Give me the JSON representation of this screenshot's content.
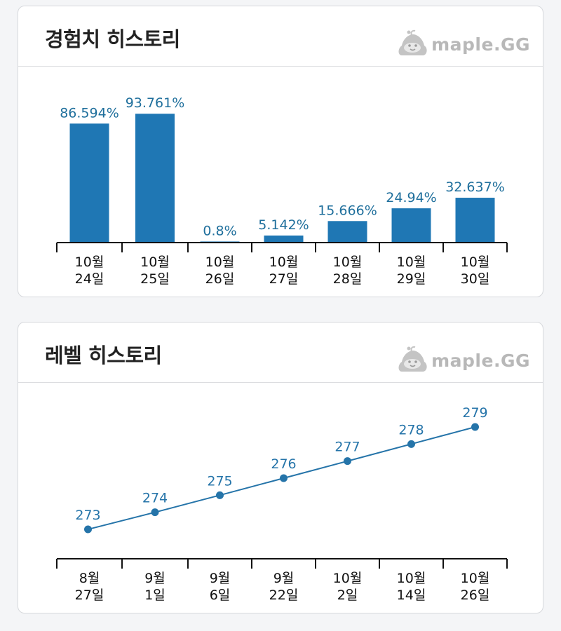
{
  "exp_card": {
    "title": "경험치 히스토리",
    "logo_text": "maple.GG"
  },
  "level_card": {
    "title": "레벨 히스토리",
    "logo_text": "maple.GG"
  },
  "chart_data": [
    {
      "type": "bar",
      "title": "경험치 히스토리",
      "categories": [
        [
          "10월",
          "24일"
        ],
        [
          "10월",
          "25일"
        ],
        [
          "10월",
          "26일"
        ],
        [
          "10월",
          "27일"
        ],
        [
          "10월",
          "28일"
        ],
        [
          "10월",
          "29일"
        ],
        [
          "10월",
          "30일"
        ]
      ],
      "values": [
        86.594,
        93.761,
        0.8,
        5.142,
        15.666,
        24.94,
        32.637
      ],
      "labels": [
        "86.594%",
        "93.761%",
        "0.8%",
        "5.142%",
        "15.666%",
        "24.94%",
        "32.637%"
      ],
      "ylim": [
        0,
        100
      ],
      "color": "#1f77b4",
      "label_color": "#1f6f9c"
    },
    {
      "type": "line",
      "title": "레벨 히스토리",
      "categories": [
        [
          "8월",
          "27일"
        ],
        [
          "9월",
          "1일"
        ],
        [
          "9월",
          "6일"
        ],
        [
          "9월",
          "22일"
        ],
        [
          "10월",
          "2일"
        ],
        [
          "10월",
          "14일"
        ],
        [
          "10월",
          "26일"
        ]
      ],
      "values": [
        273,
        274,
        275,
        276,
        277,
        278,
        279
      ],
      "labels": [
        "273",
        "274",
        "275",
        "276",
        "277",
        "278",
        "279"
      ],
      "color": "#2574a9",
      "label_color": "#2574a9"
    }
  ]
}
